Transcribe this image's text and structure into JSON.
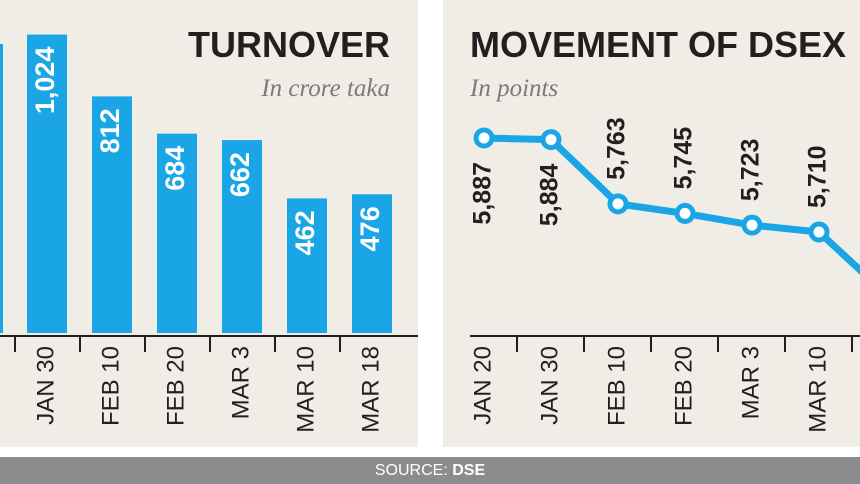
{
  "chart_data": [
    {
      "type": "bar",
      "title": "TURNOVER",
      "subtitle": "In crore taka",
      "categories": [
        "JAN 30",
        "FEB 10",
        "FEB 20",
        "MAR 3",
        "MAR 10",
        "MAR 18"
      ],
      "values": [
        1024,
        812,
        684,
        662,
        462,
        476
      ],
      "value_labels": [
        "1,024",
        "812",
        "684",
        "662",
        "462",
        "476"
      ],
      "ylim": [
        0,
        1050
      ],
      "grid": false,
      "color": "#1aa5e6"
    },
    {
      "type": "line",
      "title": "MOVEMENT OF DSEX",
      "subtitle": "In points",
      "x": [
        "JAN 20",
        "JAN 30",
        "FEB 10",
        "FEB 20",
        "MAR 3",
        "MAR 10"
      ],
      "values": [
        5887,
        5884,
        5763,
        5745,
        5723,
        5710
      ],
      "value_labels": [
        "5,887",
        "5,884",
        "5,763",
        "5,745",
        "5,723",
        "5,710"
      ],
      "grid": false,
      "color": "#1aa5e6"
    }
  ],
  "source": {
    "prefix": "SOURCE: ",
    "name": "DSE"
  }
}
